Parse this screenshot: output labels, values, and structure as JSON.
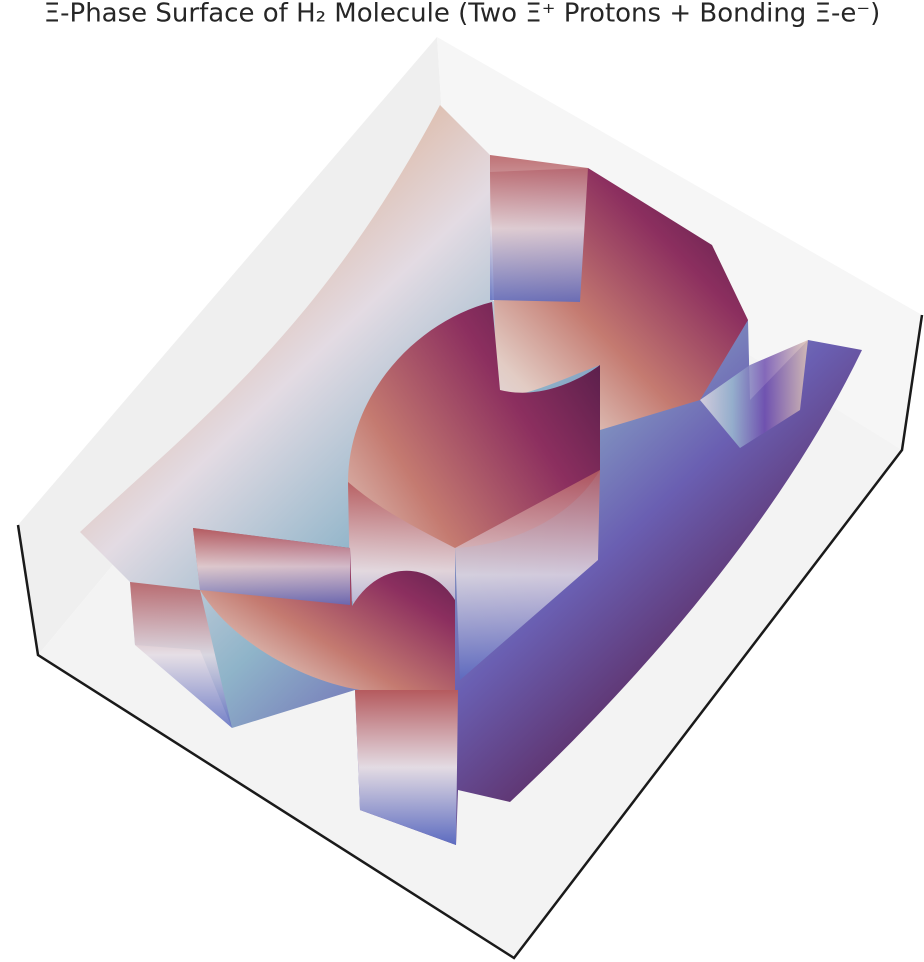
{
  "chart_data": {
    "type": "surface",
    "title": "Ξ-Phase Surface of H₂ Molecule (Two Ξ⁺ Protons + Bonding Ξ-e⁻)"
  }
}
